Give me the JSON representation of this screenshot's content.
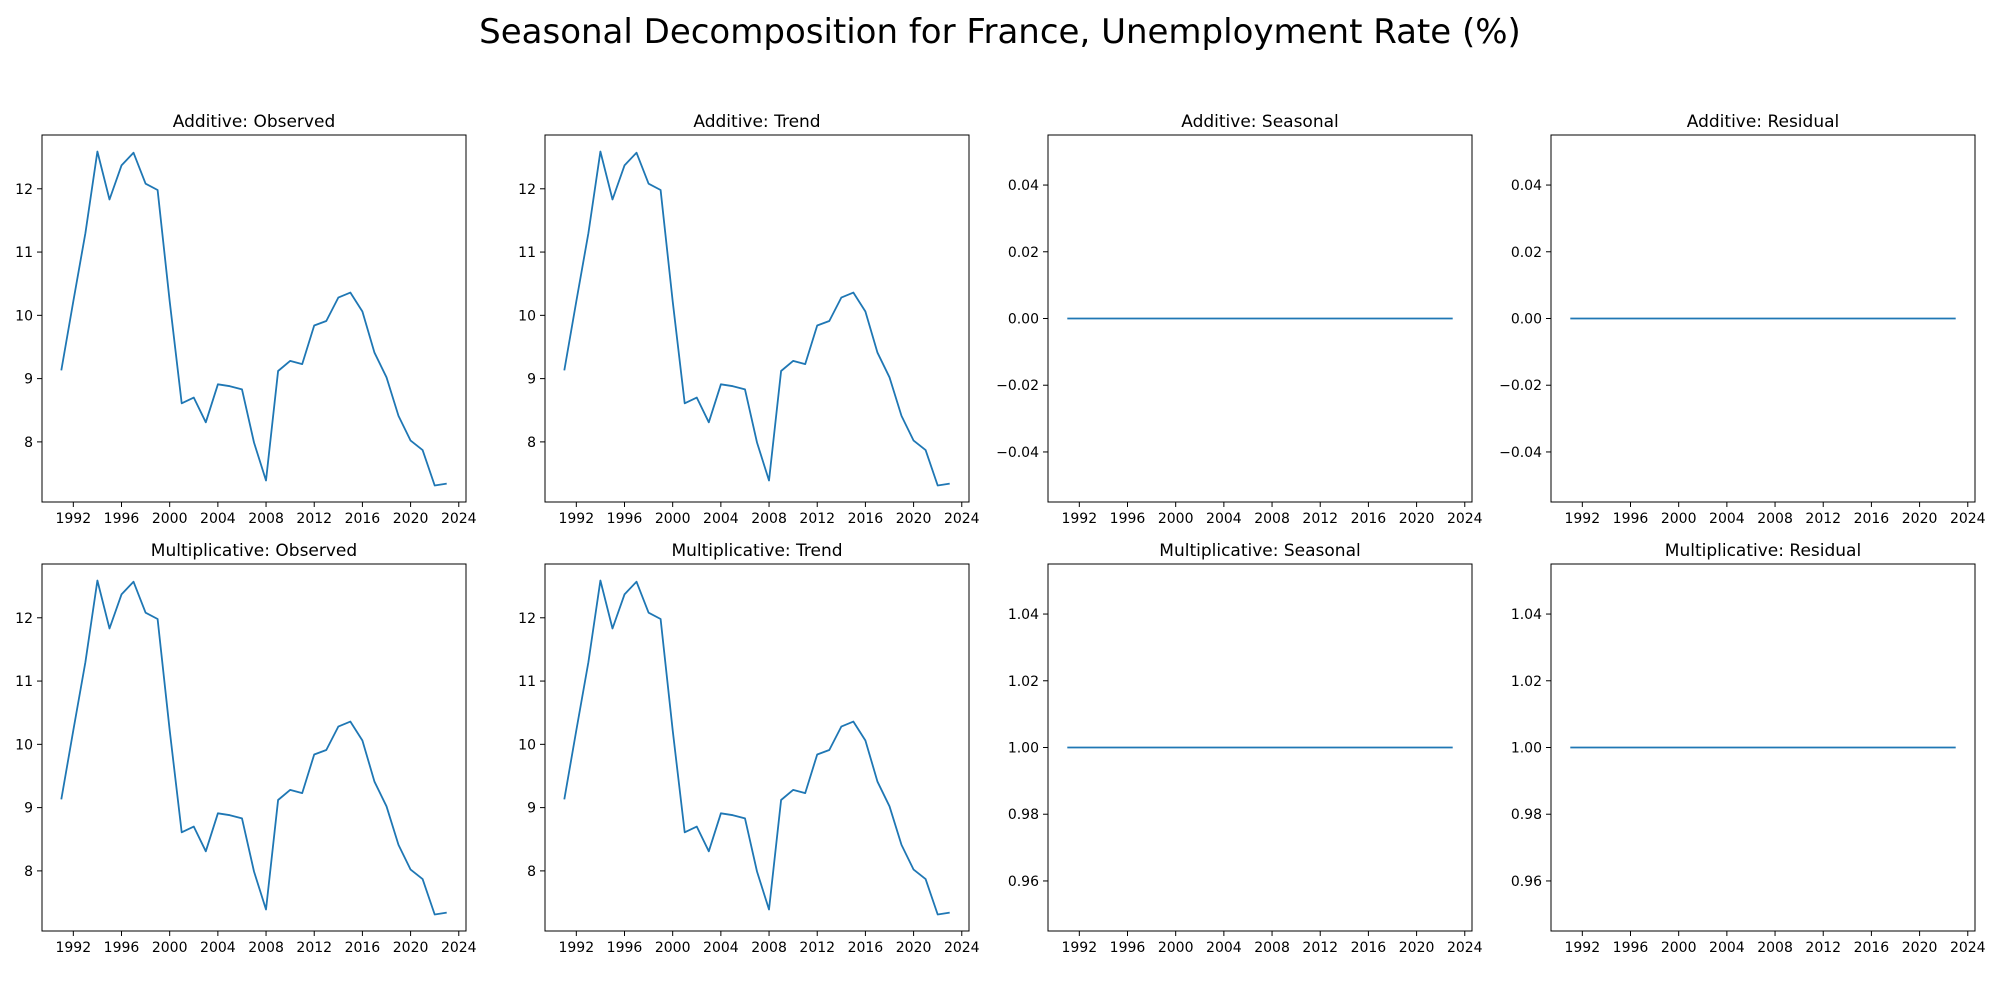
{
  "figure": {
    "title": "Seasonal Decomposition for France, Unemployment Rate (%)"
  },
  "style": {
    "line_color": "#1f77b4",
    "axis_color": "#000000"
  },
  "chart_data": [
    {
      "type": "line",
      "title": "Additive: Observed",
      "x": [
        1991,
        1992,
        1993,
        1994,
        1995,
        1996,
        1997,
        1998,
        1999,
        2000,
        2001,
        2002,
        2003,
        2004,
        2005,
        2006,
        2007,
        2008,
        2009,
        2010,
        2011,
        2012,
        2013,
        2014,
        2015,
        2016,
        2017,
        2018,
        2019,
        2020,
        2021,
        2022,
        2023
      ],
      "y": [
        9.13,
        10.22,
        11.3,
        12.59,
        11.83,
        12.37,
        12.57,
        12.08,
        11.98,
        10.22,
        8.61,
        8.7,
        8.31,
        8.91,
        8.88,
        8.83,
        7.99,
        7.39,
        9.12,
        9.28,
        9.23,
        9.84,
        9.91,
        10.28,
        10.36,
        10.06,
        9.41,
        9.02,
        8.41,
        8.02,
        7.87,
        7.31,
        7.34
      ],
      "xticks": [
        1992,
        1996,
        2000,
        2004,
        2008,
        2012,
        2016,
        2020,
        2024
      ],
      "xlim": [
        1989.4,
        2024.6
      ],
      "yticks": [
        8,
        9,
        10,
        11,
        12
      ],
      "ylim": [
        7.05,
        12.85
      ]
    },
    {
      "type": "line",
      "title": "Additive: Trend",
      "x": [
        1991,
        1992,
        1993,
        1994,
        1995,
        1996,
        1997,
        1998,
        1999,
        2000,
        2001,
        2002,
        2003,
        2004,
        2005,
        2006,
        2007,
        2008,
        2009,
        2010,
        2011,
        2012,
        2013,
        2014,
        2015,
        2016,
        2017,
        2018,
        2019,
        2020,
        2021,
        2022,
        2023
      ],
      "y": [
        9.13,
        10.22,
        11.3,
        12.59,
        11.83,
        12.37,
        12.57,
        12.08,
        11.98,
        10.22,
        8.61,
        8.7,
        8.31,
        8.91,
        8.88,
        8.83,
        7.99,
        7.39,
        9.12,
        9.28,
        9.23,
        9.84,
        9.91,
        10.28,
        10.36,
        10.06,
        9.41,
        9.02,
        8.41,
        8.02,
        7.87,
        7.31,
        7.34
      ],
      "xticks": [
        1992,
        1996,
        2000,
        2004,
        2008,
        2012,
        2016,
        2020,
        2024
      ],
      "xlim": [
        1989.4,
        2024.6
      ],
      "yticks": [
        8,
        9,
        10,
        11,
        12
      ],
      "ylim": [
        7.05,
        12.85
      ]
    },
    {
      "type": "line",
      "title": "Additive: Seasonal",
      "x": [
        1991,
        2023
      ],
      "y": [
        0,
        0
      ],
      "xticks": [
        1992,
        1996,
        2000,
        2004,
        2008,
        2012,
        2016,
        2020,
        2024
      ],
      "xlim": [
        1989.4,
        2024.6
      ],
      "yticks": [
        -0.04,
        -0.02,
        0.0,
        0.02,
        0.04
      ],
      "ytick_labels": [
        "−0.04",
        "−0.02",
        "0.00",
        "0.02",
        "0.04"
      ],
      "ylim": [
        -0.055,
        0.055
      ]
    },
    {
      "type": "line",
      "title": "Additive: Residual",
      "x": [
        1991,
        2023
      ],
      "y": [
        0,
        0
      ],
      "xticks": [
        1992,
        1996,
        2000,
        2004,
        2008,
        2012,
        2016,
        2020,
        2024
      ],
      "xlim": [
        1989.4,
        2024.6
      ],
      "yticks": [
        -0.04,
        -0.02,
        0.0,
        0.02,
        0.04
      ],
      "ytick_labels": [
        "−0.04",
        "−0.02",
        "0.00",
        "0.02",
        "0.04"
      ],
      "ylim": [
        -0.055,
        0.055
      ]
    },
    {
      "type": "line",
      "title": "Multiplicative: Observed",
      "x": [
        1991,
        1992,
        1993,
        1994,
        1995,
        1996,
        1997,
        1998,
        1999,
        2000,
        2001,
        2002,
        2003,
        2004,
        2005,
        2006,
        2007,
        2008,
        2009,
        2010,
        2011,
        2012,
        2013,
        2014,
        2015,
        2016,
        2017,
        2018,
        2019,
        2020,
        2021,
        2022,
        2023
      ],
      "y": [
        9.13,
        10.22,
        11.3,
        12.59,
        11.83,
        12.37,
        12.57,
        12.08,
        11.98,
        10.22,
        8.61,
        8.7,
        8.31,
        8.91,
        8.88,
        8.83,
        7.99,
        7.39,
        9.12,
        9.28,
        9.23,
        9.84,
        9.91,
        10.28,
        10.36,
        10.06,
        9.41,
        9.02,
        8.41,
        8.02,
        7.87,
        7.31,
        7.34
      ],
      "xticks": [
        1992,
        1996,
        2000,
        2004,
        2008,
        2012,
        2016,
        2020,
        2024
      ],
      "xlim": [
        1989.4,
        2024.6
      ],
      "yticks": [
        8,
        9,
        10,
        11,
        12
      ],
      "ylim": [
        7.05,
        12.85
      ]
    },
    {
      "type": "line",
      "title": "Multiplicative: Trend",
      "x": [
        1991,
        1992,
        1993,
        1994,
        1995,
        1996,
        1997,
        1998,
        1999,
        2000,
        2001,
        2002,
        2003,
        2004,
        2005,
        2006,
        2007,
        2008,
        2009,
        2010,
        2011,
        2012,
        2013,
        2014,
        2015,
        2016,
        2017,
        2018,
        2019,
        2020,
        2021,
        2022,
        2023
      ],
      "y": [
        9.13,
        10.22,
        11.3,
        12.59,
        11.83,
        12.37,
        12.57,
        12.08,
        11.98,
        10.22,
        8.61,
        8.7,
        8.31,
        8.91,
        8.88,
        8.83,
        7.99,
        7.39,
        9.12,
        9.28,
        9.23,
        9.84,
        9.91,
        10.28,
        10.36,
        10.06,
        9.41,
        9.02,
        8.41,
        8.02,
        7.87,
        7.31,
        7.34
      ],
      "xticks": [
        1992,
        1996,
        2000,
        2004,
        2008,
        2012,
        2016,
        2020,
        2024
      ],
      "xlim": [
        1989.4,
        2024.6
      ],
      "yticks": [
        8,
        9,
        10,
        11,
        12
      ],
      "ylim": [
        7.05,
        12.85
      ]
    },
    {
      "type": "line",
      "title": "Multiplicative: Seasonal",
      "x": [
        1991,
        2023
      ],
      "y": [
        1,
        1
      ],
      "xticks": [
        1992,
        1996,
        2000,
        2004,
        2008,
        2012,
        2016,
        2020,
        2024
      ],
      "xlim": [
        1989.4,
        2024.6
      ],
      "yticks": [
        0.96,
        0.98,
        1.0,
        1.02,
        1.04
      ],
      "ytick_labels": [
        "0.96",
        "0.98",
        "1.00",
        "1.02",
        "1.04"
      ],
      "ylim": [
        0.945,
        1.055
      ]
    },
    {
      "type": "line",
      "title": "Multiplicative: Residual",
      "x": [
        1991,
        2023
      ],
      "y": [
        1,
        1
      ],
      "xticks": [
        1992,
        1996,
        2000,
        2004,
        2008,
        2012,
        2016,
        2020,
        2024
      ],
      "xlim": [
        1989.4,
        2024.6
      ],
      "yticks": [
        0.96,
        0.98,
        1.0,
        1.02,
        1.04
      ],
      "ytick_labels": [
        "0.96",
        "0.98",
        "1.00",
        "1.02",
        "1.04"
      ],
      "ylim": [
        0.945,
        1.055
      ]
    }
  ]
}
